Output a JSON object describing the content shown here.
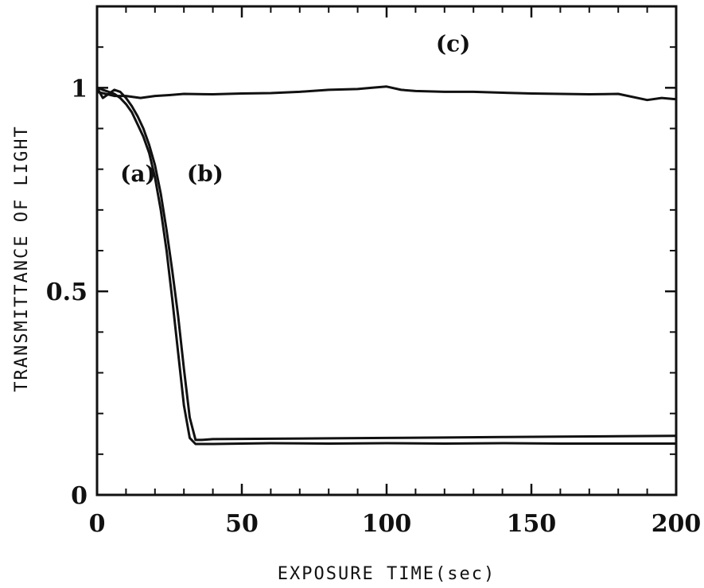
{
  "chart_data": {
    "type": "line",
    "title": "",
    "xlabel": "EXPOSURE TIME(sec)",
    "ylabel": "TRANSMITTANCE OF LIGHT",
    "xlim": [
      0,
      200
    ],
    "ylim": [
      0,
      1.2
    ],
    "x_ticks": [
      0,
      50,
      100,
      150,
      200
    ],
    "x_tick_labels": [
      "0",
      "50",
      "100",
      "150",
      "200"
    ],
    "x_minor_ticks": [
      10,
      20,
      30,
      40,
      60,
      70,
      80,
      90,
      110,
      120,
      130,
      140,
      160,
      170,
      180,
      190
    ],
    "y_ticks": [
      0,
      0.5,
      1
    ],
    "y_tick_labels": [
      "0",
      "0.5",
      "1"
    ],
    "y_minor_ticks": [
      0.1,
      0.2,
      0.3,
      0.4,
      0.6,
      0.7,
      0.8,
      0.9,
      1.1
    ],
    "grid": false,
    "legend": "none",
    "series": [
      {
        "name": "(a)",
        "label_at": [
          8,
          0.77
        ],
        "color": "#111111",
        "x": [
          0,
          2,
          4,
          6,
          8,
          10,
          12,
          14,
          16,
          18,
          20,
          22,
          24,
          26,
          28,
          30,
          32,
          34,
          36,
          40,
          60,
          80,
          100,
          120,
          140,
          160,
          180,
          200
        ],
        "y": [
          1.0,
          0.995,
          0.99,
          0.985,
          0.975,
          0.96,
          0.94,
          0.91,
          0.88,
          0.84,
          0.78,
          0.7,
          0.6,
          0.48,
          0.35,
          0.22,
          0.14,
          0.125,
          0.125,
          0.125,
          0.127,
          0.126,
          0.127,
          0.126,
          0.127,
          0.126,
          0.126,
          0.126
        ]
      },
      {
        "name": "(b)",
        "label_at": [
          31,
          0.77
        ],
        "color": "#111111",
        "x": [
          0,
          2,
          4,
          6,
          8,
          10,
          12,
          14,
          16,
          18,
          20,
          22,
          24,
          26,
          28,
          30,
          32,
          34,
          36,
          40,
          60,
          80,
          100,
          120,
          140,
          160,
          180,
          200
        ],
        "y": [
          1.0,
          0.975,
          0.985,
          0.995,
          0.99,
          0.975,
          0.955,
          0.93,
          0.9,
          0.86,
          0.81,
          0.74,
          0.65,
          0.55,
          0.44,
          0.31,
          0.19,
          0.135,
          0.135,
          0.137,
          0.138,
          0.139,
          0.14,
          0.141,
          0.142,
          0.143,
          0.144,
          0.145
        ]
      },
      {
        "name": "(c)",
        "label_at": [
          117,
          1.09
        ],
        "color": "#111111",
        "x": [
          0,
          3,
          6,
          10,
          15,
          20,
          25,
          30,
          40,
          50,
          60,
          70,
          80,
          90,
          95,
          100,
          105,
          110,
          120,
          130,
          140,
          150,
          160,
          170,
          180,
          190,
          195,
          200
        ],
        "y": [
          0.99,
          0.985,
          0.98,
          0.98,
          0.975,
          0.98,
          0.982,
          0.985,
          0.984,
          0.986,
          0.987,
          0.99,
          0.995,
          0.997,
          1.0,
          1.003,
          0.995,
          0.992,
          0.99,
          0.99,
          0.988,
          0.986,
          0.985,
          0.984,
          0.985,
          0.97,
          0.975,
          0.972
        ]
      }
    ]
  }
}
